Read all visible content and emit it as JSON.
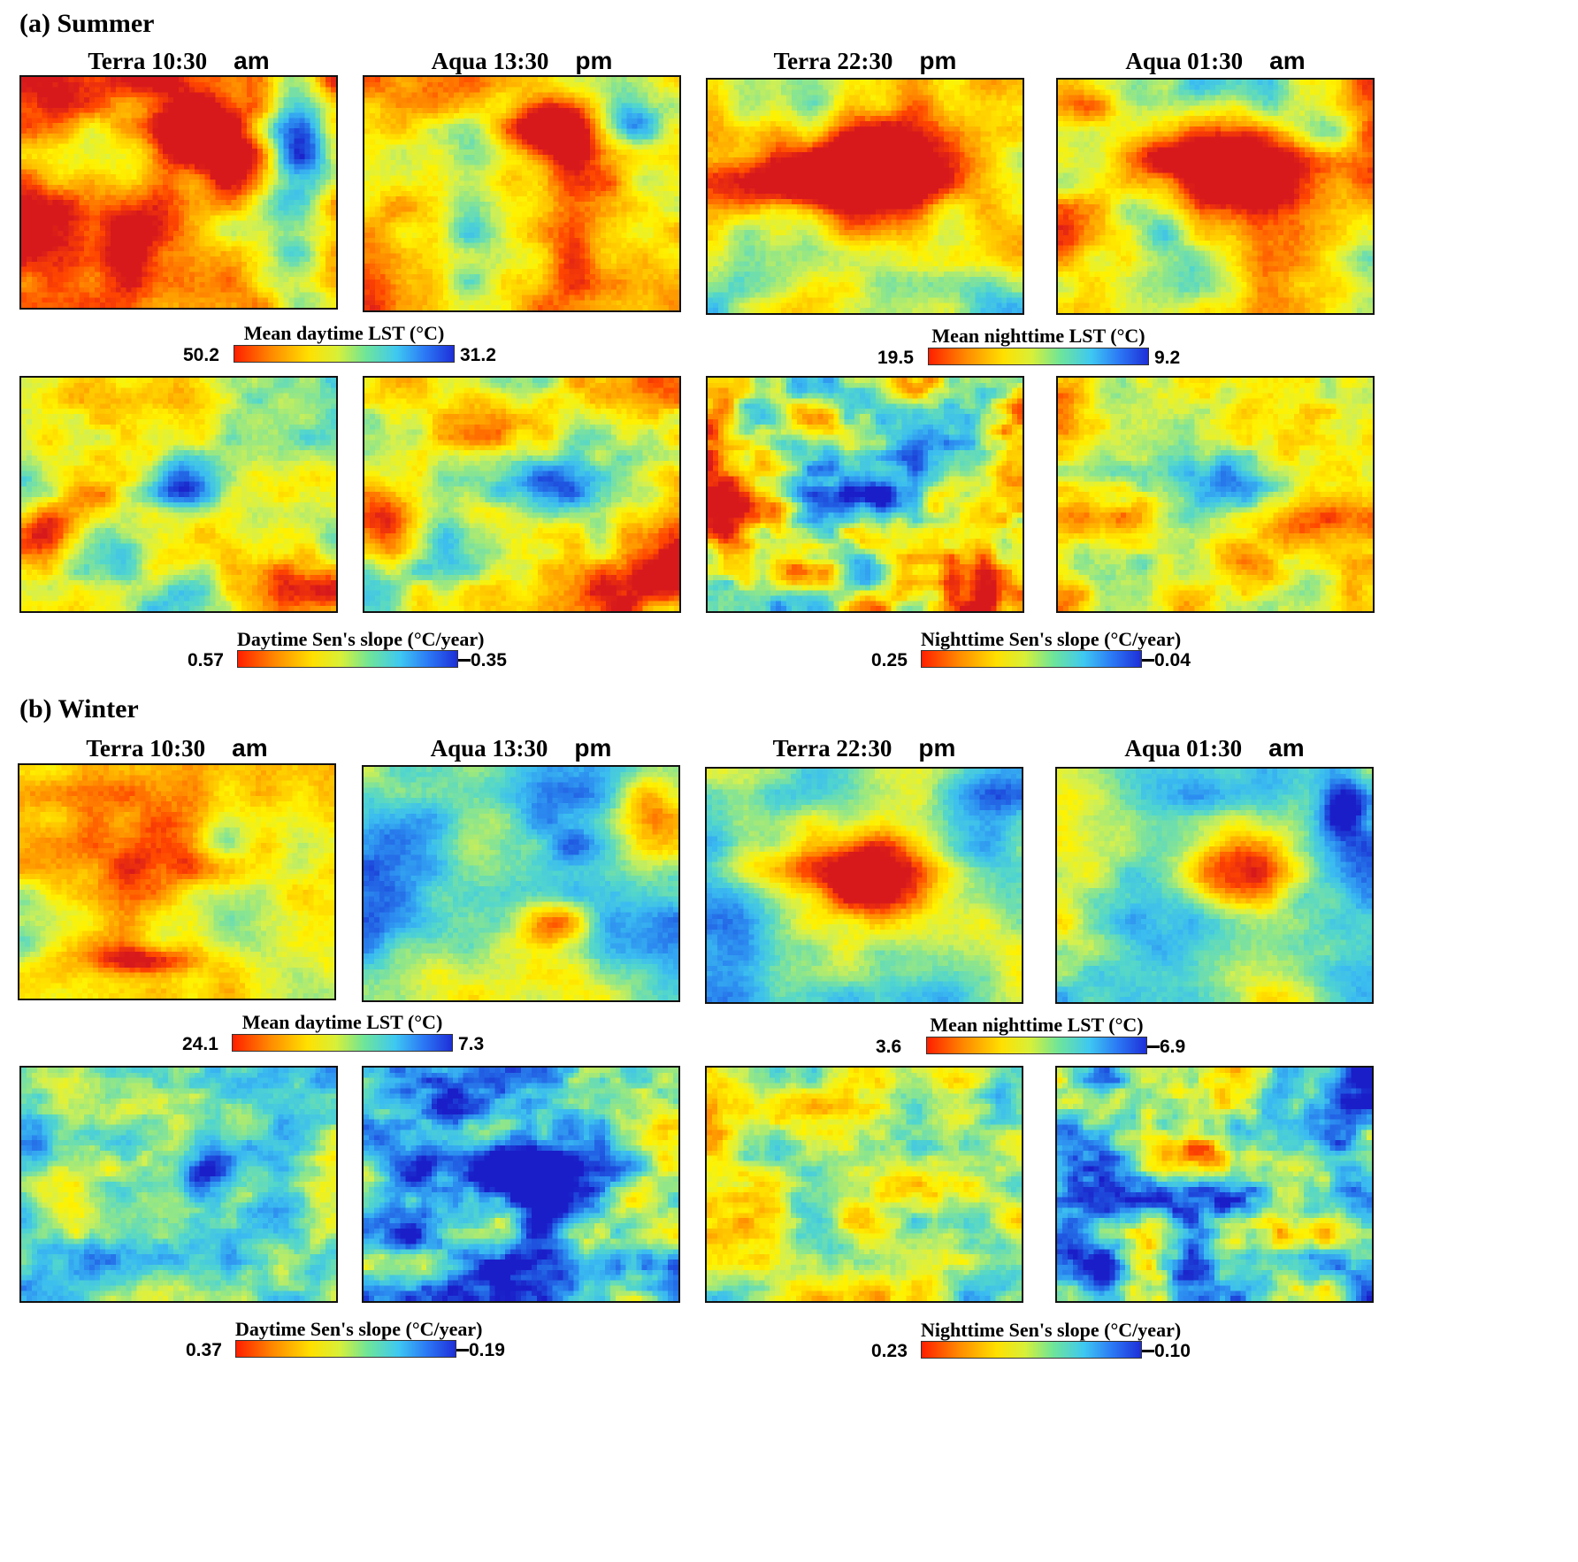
{
  "figure": {
    "colormap": [
      "#d7191c",
      "#ff4500",
      "#ff8c00",
      "#ffc400",
      "#fff200",
      "#d4f050",
      "#8fe68a",
      "#52d6cc",
      "#3bbdf0",
      "#2c8cf0",
      "#1f55e0",
      "#1a1ec8"
    ],
    "sections": [
      {
        "title": "(a) Summer",
        "columns": [
          {
            "sensor": "Terra 10:30",
            "ampm": "am"
          },
          {
            "sensor": "Aqua 13:30",
            "ampm": "pm"
          },
          {
            "sensor": "Terra 22:30",
            "ampm": "pm"
          },
          {
            "sensor": "Aqua 01:30",
            "ampm": "am"
          }
        ],
        "colorbars": [
          {
            "title": "Mean daytime LST (°C)",
            "max": "50.2",
            "min": "31.2"
          },
          {
            "title": "Mean nighttime LST (°C)",
            "max": "19.5",
            "min": "9.2"
          },
          {
            "title": "Daytime Sen's slope (°C/year)",
            "max": "0.57",
            "min": "0.35"
          },
          {
            "title": "Nighttime Sen's slope (°C/year)",
            "max": "0.25",
            "min": "0.04"
          }
        ]
      },
      {
        "title": "(b) Winter",
        "columns": [
          {
            "sensor": "Terra 10:30",
            "ampm": "am"
          },
          {
            "sensor": "Aqua 13:30",
            "ampm": "pm"
          },
          {
            "sensor": "Terra 22:30",
            "ampm": "pm"
          },
          {
            "sensor": "Aqua 01:30",
            "ampm": "am"
          }
        ],
        "colorbars": [
          {
            "title": "Mean daytime LST (°C)",
            "max": "24.1",
            "min": "7.3"
          },
          {
            "title": "Mean nighttime LST (°C)",
            "max": "3.6",
            "min": "6.9"
          },
          {
            "title": "Daytime Sen's slope (°C/year)",
            "max": "0.37",
            "min": "0.19"
          },
          {
            "title": "Nighttime Sen's slope (°C/year)",
            "max": "0.23",
            "min": "0.10"
          }
        ]
      }
    ]
  }
}
